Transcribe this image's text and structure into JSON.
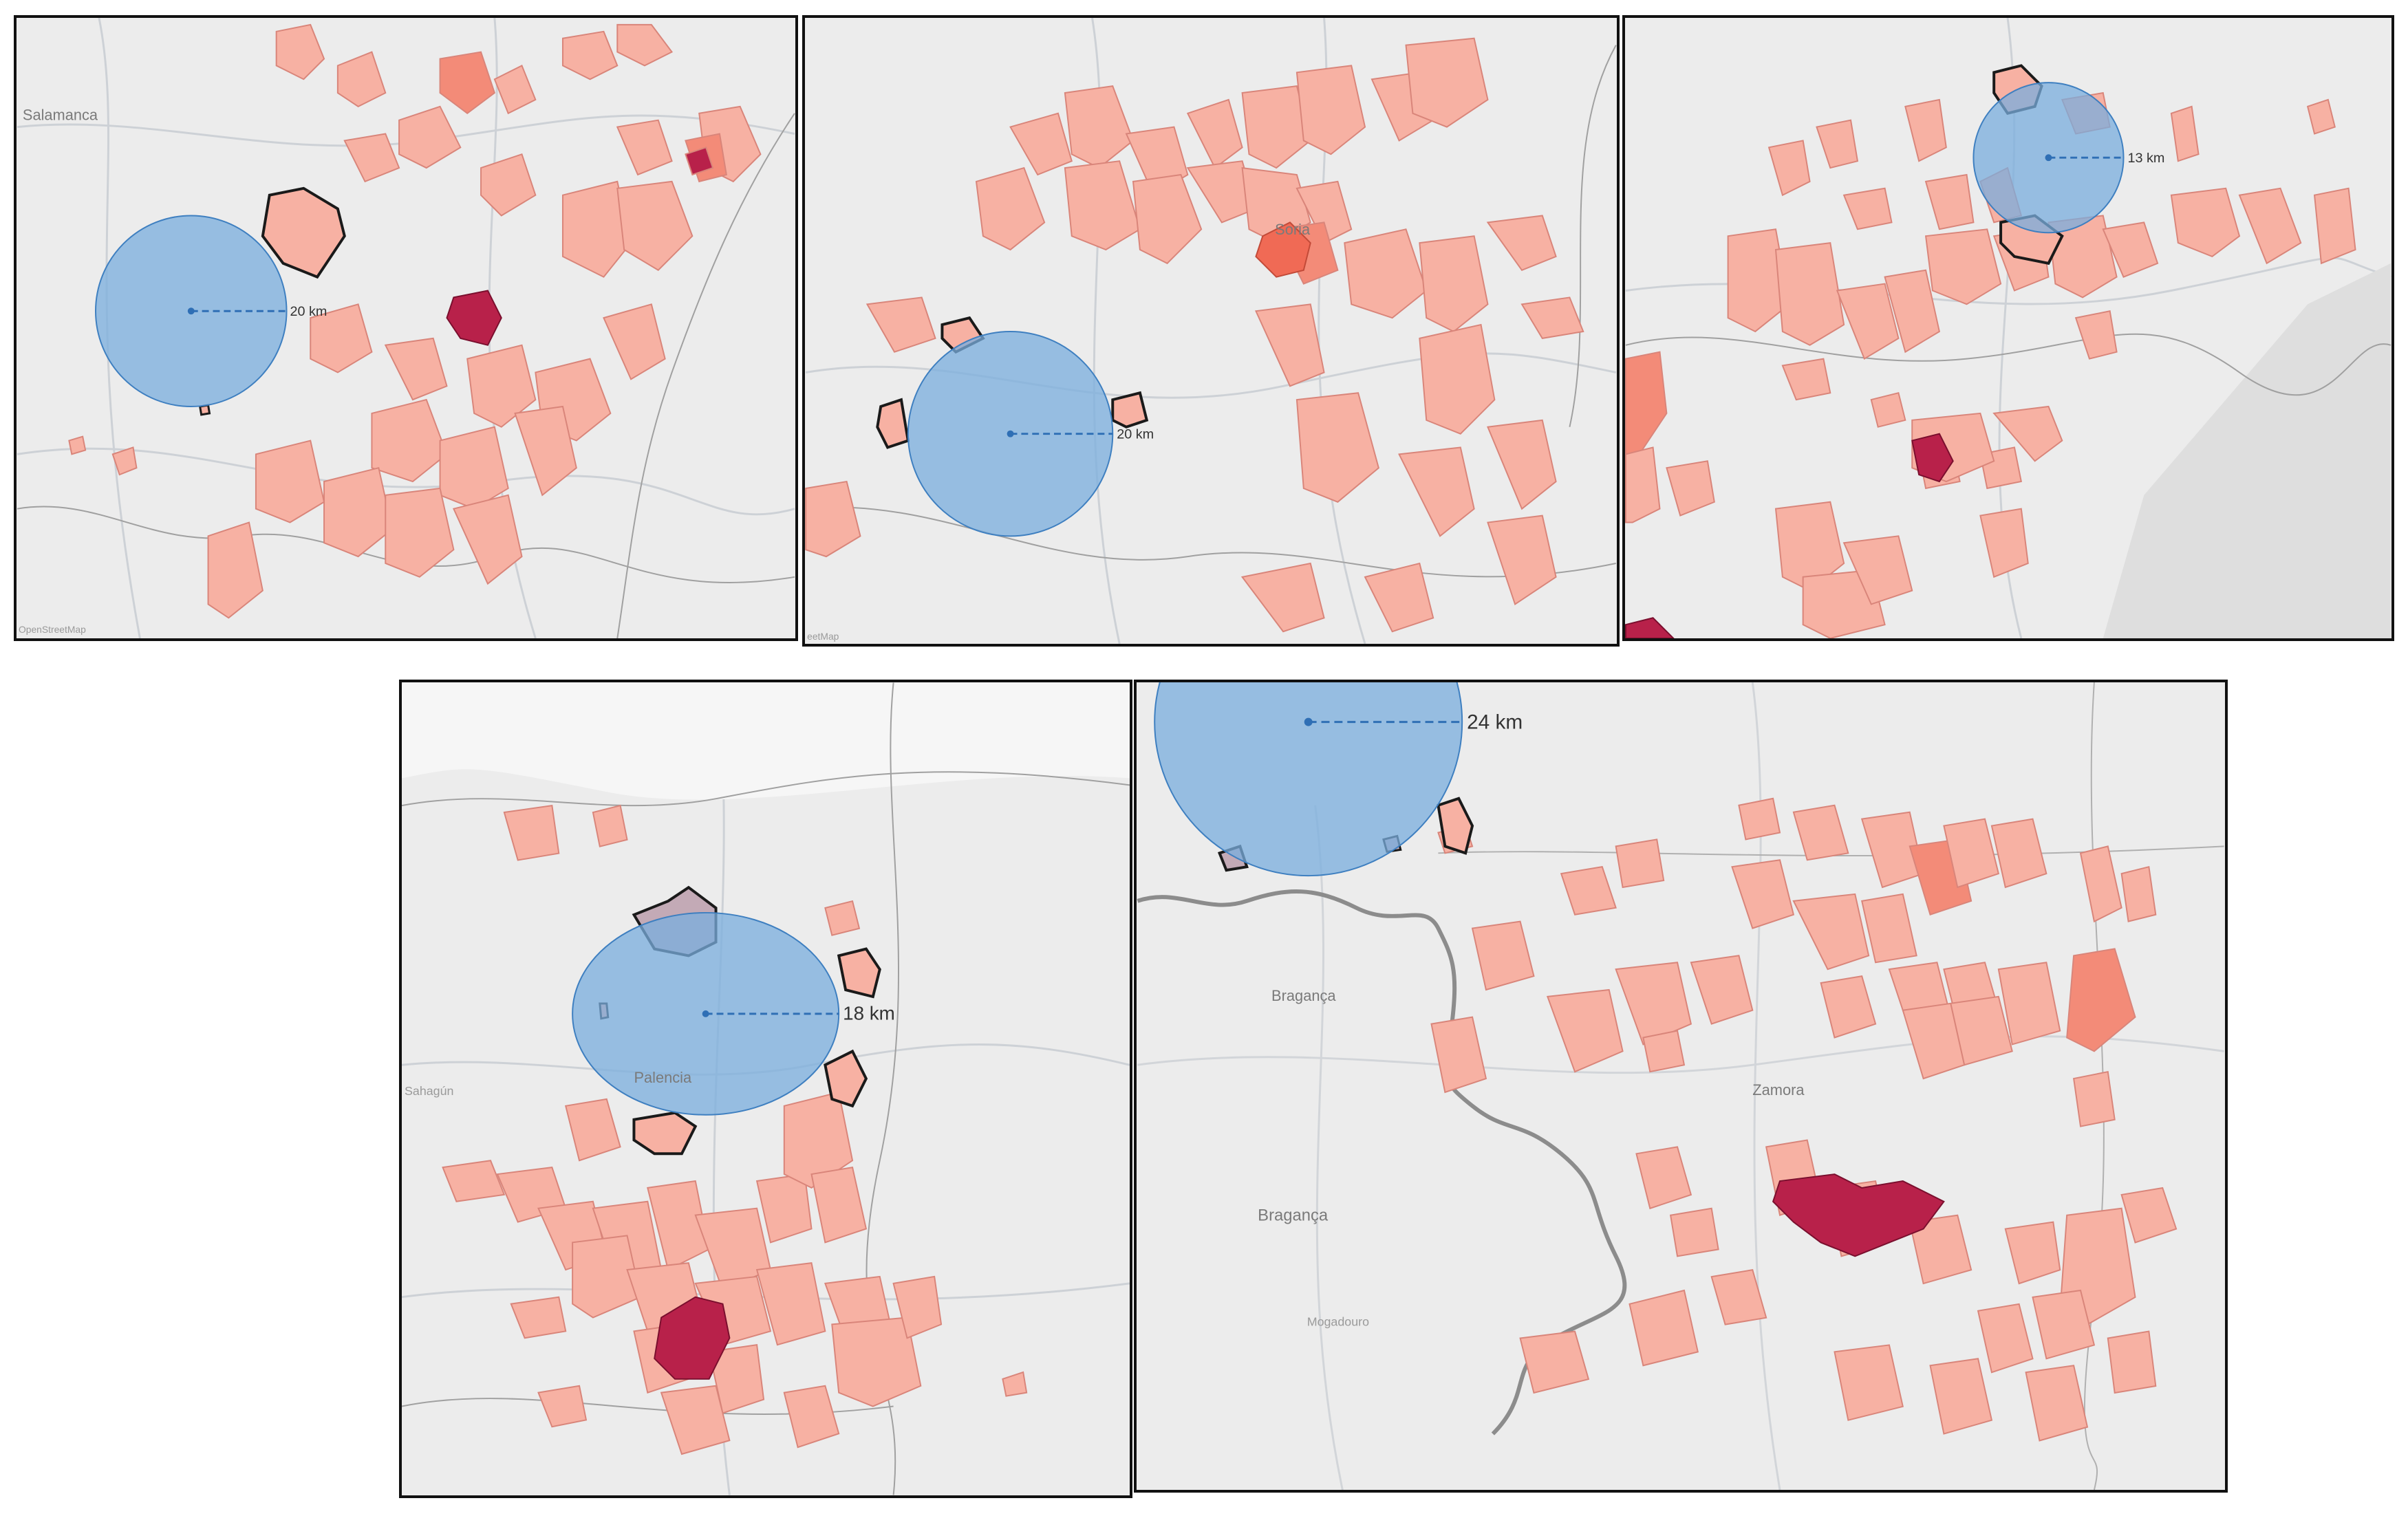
{
  "colors": {
    "base": "#ececec",
    "road": "#c9cdd2",
    "border": "#8c8c8c",
    "muni_light": "#f7b1a3",
    "muni_mid": "#f38b78",
    "muni_dark": "#b8214a",
    "buffer": "#7aaede",
    "buffer_stroke": "#3e7fc0",
    "outline": "#1a1a1a"
  },
  "panels": [
    {
      "id": "p1",
      "radius_label": "20 km",
      "place_labels": [
        "Salamanca"
      ],
      "attribution": "OpenStreetMap"
    },
    {
      "id": "p2",
      "radius_label": "20 km",
      "place_labels": [
        "Soria"
      ],
      "attribution": "eetMap"
    },
    {
      "id": "p3",
      "radius_label": "13 km",
      "place_labels": []
    },
    {
      "id": "p4",
      "radius_label": "18 km",
      "place_labels": [
        "Palencia",
        "Sahagún"
      ]
    },
    {
      "id": "p5",
      "radius_label": "24 km",
      "place_labels": [
        "Bragança",
        "Bragança",
        "Zamora",
        "Mogadouro"
      ]
    }
  ]
}
